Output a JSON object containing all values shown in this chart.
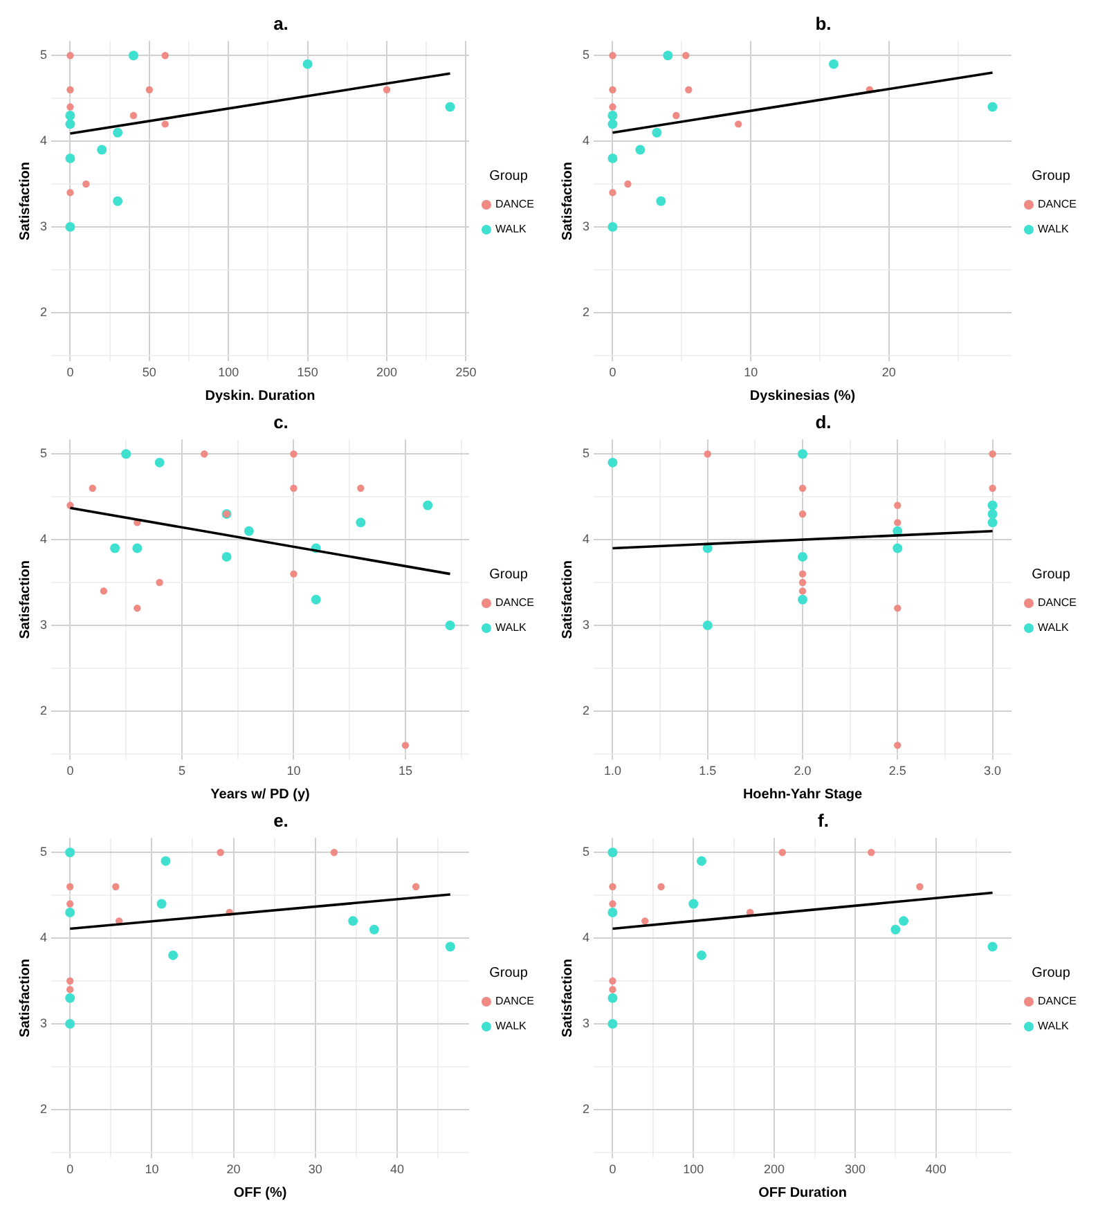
{
  "chart_data": [
    {
      "type": "scatter",
      "title": "a.",
      "xlabel": "Dyskin. Duration",
      "ylabel": "Satisfaction",
      "legend_title": "Group",
      "legend": "right",
      "grid": true,
      "marker": "circle",
      "xlim": [
        -12,
        252
      ],
      "ylim": [
        1.43,
        5.17
      ],
      "xticks": [
        0,
        {
          "value": 25,
          "label": null
        },
        50,
        {
          "value": 75,
          "label": null
        },
        100,
        {
          "value": 125,
          "label": null
        },
        150,
        {
          "value": 175,
          "label": null
        },
        200,
        {
          "value": 225,
          "label": null
        },
        250
      ],
      "yticks": [
        {
          "value": 1.5,
          "label": null
        },
        2,
        {
          "value": 2.5,
          "label": null
        },
        3,
        {
          "value": 3.5,
          "label": null
        },
        4,
        {
          "value": 4.5,
          "label": null
        },
        5
      ],
      "series": [
        {
          "name": "DANCE",
          "color": "#f08a84",
          "x": [
            0,
            0,
            0,
            0,
            10,
            40,
            50,
            60,
            60,
            200
          ],
          "values": [
            5,
            4.6,
            4.4,
            3.4,
            3.5,
            4.3,
            4.6,
            5,
            4.2,
            4.6
          ]
        },
        {
          "name": "WALK",
          "color": "#40e0d0",
          "x": [
            0,
            0,
            0,
            0,
            20,
            30,
            30,
            40,
            150,
            240
          ],
          "values": [
            4.3,
            4.2,
            3.8,
            3,
            3.9,
            4.1,
            3.3,
            5,
            4.9,
            4.4
          ]
        },
        {
          "type": "line",
          "marker": "none",
          "color": "#000000",
          "x": [
            0,
            240
          ],
          "values": [
            4.09,
            4.79
          ]
        }
      ]
    },
    {
      "type": "scatter",
      "title": "b.",
      "xlabel": "Dyskinesias (%)",
      "ylabel": "Satisfaction",
      "legend_title": "Group",
      "legend": "right",
      "grid": true,
      "marker": "circle",
      "xlim": [
        -1.375,
        28.875
      ],
      "ylim": [
        1.43,
        5.17
      ],
      "xticks": [
        0,
        {
          "value": 5,
          "label": null
        },
        10,
        {
          "value": 15,
          "label": null
        },
        20,
        {
          "value": 25,
          "label": null
        }
      ],
      "yticks": [
        {
          "value": 1.5,
          "label": null
        },
        2,
        {
          "value": 2.5,
          "label": null
        },
        3,
        {
          "value": 3.5,
          "label": null
        },
        4,
        {
          "value": 4.5,
          "label": null
        },
        5
      ],
      "series": [
        {
          "name": "DANCE",
          "color": "#f08a84",
          "x": [
            0,
            0,
            0,
            0,
            1.1,
            4.6,
            5.3,
            5.5,
            9.1,
            18.6
          ],
          "values": [
            5,
            4.6,
            4.4,
            3.4,
            3.5,
            4.3,
            5,
            4.6,
            4.2,
            4.6
          ]
        },
        {
          "name": "WALK",
          "color": "#40e0d0",
          "x": [
            0,
            0,
            0,
            0,
            2,
            3.2,
            3.5,
            4,
            16,
            27.5
          ],
          "values": [
            4.3,
            4.2,
            3.8,
            3,
            3.9,
            4.1,
            3.3,
            5,
            4.9,
            4.4
          ]
        },
        {
          "type": "line",
          "marker": "none",
          "color": "#000000",
          "x": [
            0,
            27.5
          ],
          "values": [
            4.1,
            4.8
          ]
        }
      ]
    },
    {
      "type": "scatter",
      "title": "c.",
      "xlabel": "Years w/ PD (y)",
      "ylabel": "Satisfaction",
      "legend_title": "Group",
      "legend": "right",
      "grid": true,
      "marker": "circle",
      "xlim": [
        -0.85,
        17.85
      ],
      "ylim": [
        1.43,
        5.17
      ],
      "xticks": [
        0,
        {
          "value": 2.5,
          "label": null
        },
        5,
        {
          "value": 7.5,
          "label": null
        },
        10,
        {
          "value": 12.5,
          "label": null
        },
        15,
        {
          "value": 17.5,
          "label": null
        }
      ],
      "yticks": [
        {
          "value": 1.5,
          "label": null
        },
        2,
        {
          "value": 2.5,
          "label": null
        },
        3,
        {
          "value": 3.5,
          "label": null
        },
        4,
        {
          "value": 4.5,
          "label": null
        },
        5
      ],
      "series": [
        {
          "name": "DANCE",
          "color": "#f08a84",
          "x": [
            0,
            1,
            1.5,
            3,
            3,
            4,
            6,
            7,
            10,
            10,
            10,
            13,
            15
          ],
          "values": [
            4.4,
            4.6,
            3.4,
            4.2,
            3.2,
            3.5,
            5,
            4.3,
            5,
            4.6,
            3.6,
            4.6,
            1.6
          ]
        },
        {
          "name": "WALK",
          "color": "#40e0d0",
          "x": [
            2,
            2.5,
            3,
            4,
            7,
            7,
            8,
            11,
            11,
            13,
            16,
            17
          ],
          "values": [
            3.9,
            5,
            3.9,
            4.9,
            4.3,
            3.8,
            4.1,
            3.9,
            3.3,
            4.2,
            4.4,
            3
          ]
        },
        {
          "type": "line",
          "marker": "none",
          "color": "#000000",
          "x": [
            0,
            17
          ],
          "values": [
            4.37,
            3.6
          ]
        }
      ]
    },
    {
      "type": "scatter",
      "title": "d.",
      "xlabel": "Hoehn-Yahr Stage",
      "ylabel": "Satisfaction",
      "legend_title": "Group",
      "legend": "right",
      "grid": true,
      "marker": "circle",
      "xlim": [
        0.9,
        3.1
      ],
      "ylim": [
        1.43,
        5.17
      ],
      "xticks": [
        {
          "value": 1,
          "label": "1.0"
        },
        {
          "value": 1.25,
          "label": null
        },
        1.5,
        {
          "value": 1.75,
          "label": null
        },
        {
          "value": 2,
          "label": "2.0"
        },
        {
          "value": 2.25,
          "label": null
        },
        2.5,
        {
          "value": 2.75,
          "label": null
        },
        {
          "value": 3,
          "label": "3.0"
        }
      ],
      "yticks": [
        {
          "value": 1.5,
          "label": null
        },
        2,
        {
          "value": 2.5,
          "label": null
        },
        3,
        {
          "value": 3.5,
          "label": null
        },
        4,
        {
          "value": 4.5,
          "label": null
        },
        5
      ],
      "series": [
        {
          "name": "DANCE",
          "color": "#f08a84",
          "x": [
            1.5,
            2,
            2,
            2,
            2,
            2,
            2.5,
            2.5,
            2.5,
            2.5,
            3,
            3
          ],
          "values": [
            5,
            4.6,
            4.3,
            3.6,
            3.5,
            3.4,
            4.4,
            4.2,
            3.2,
            1.6,
            5,
            4.6
          ]
        },
        {
          "name": "WALK",
          "color": "#40e0d0",
          "x": [
            1,
            1.5,
            1.5,
            2,
            2,
            2,
            2.5,
            2.5,
            3,
            3,
            3
          ],
          "values": [
            4.9,
            3.9,
            3,
            5,
            3.8,
            3.3,
            4.1,
            3.9,
            4.4,
            4.3,
            4.2
          ]
        },
        {
          "type": "line",
          "marker": "none",
          "color": "#000000",
          "x": [
            1,
            3
          ],
          "values": [
            3.9,
            4.1
          ]
        }
      ]
    },
    {
      "type": "scatter",
      "title": "e.",
      "xlabel": "OFF (%)",
      "ylabel": "Satisfaction",
      "legend_title": "Group",
      "legend": "right",
      "grid": true,
      "marker": "circle",
      "xlim": [
        -2.3,
        48.8
      ],
      "ylim": [
        1.43,
        5.17
      ],
      "xticks": [
        0,
        {
          "value": 5,
          "label": null
        },
        10,
        {
          "value": 15,
          "label": null
        },
        20,
        {
          "value": 25,
          "label": null
        },
        30,
        {
          "value": 35,
          "label": null
        },
        40,
        {
          "value": 45,
          "label": null
        }
      ],
      "yticks": [
        {
          "value": 1.5,
          "label": null
        },
        2,
        {
          "value": 2.5,
          "label": null
        },
        3,
        {
          "value": 3.5,
          "label": null
        },
        4,
        {
          "value": 4.5,
          "label": null
        },
        5
      ],
      "series": [
        {
          "name": "DANCE",
          "color": "#f08a84",
          "x": [
            0,
            0,
            0,
            0,
            5.6,
            6,
            18.4,
            19.5,
            32.3,
            42.3
          ],
          "values": [
            4.6,
            4.4,
            3.5,
            3.4,
            4.6,
            4.2,
            5,
            4.3,
            5,
            4.6
          ]
        },
        {
          "name": "WALK",
          "color": "#40e0d0",
          "x": [
            0,
            0,
            0,
            0,
            11.2,
            11.7,
            12.6,
            34.6,
            37.2,
            46.5
          ],
          "values": [
            5,
            4.3,
            3.3,
            3,
            4.4,
            4.9,
            3.8,
            4.2,
            4.1,
            3.9
          ]
        },
        {
          "type": "line",
          "marker": "none",
          "color": "#000000",
          "x": [
            0,
            46.5
          ],
          "values": [
            4.11,
            4.51
          ]
        }
      ]
    },
    {
      "type": "scatter",
      "title": "f.",
      "xlabel": "OFF Duration",
      "ylabel": "Satisfaction",
      "legend_title": "Group",
      "legend": "right",
      "grid": true,
      "marker": "circle",
      "xlim": [
        -23.5,
        493.5
      ],
      "ylim": [
        1.43,
        5.17
      ],
      "xticks": [
        0,
        {
          "value": 50,
          "label": null
        },
        100,
        {
          "value": 150,
          "label": null
        },
        200,
        {
          "value": 250,
          "label": null
        },
        300,
        {
          "value": 350,
          "label": null
        },
        400,
        {
          "value": 450,
          "label": null
        }
      ],
      "yticks": [
        {
          "value": 1.5,
          "label": null
        },
        2,
        {
          "value": 2.5,
          "label": null
        },
        3,
        {
          "value": 3.5,
          "label": null
        },
        4,
        {
          "value": 4.5,
          "label": null
        },
        5
      ],
      "series": [
        {
          "name": "DANCE",
          "color": "#f08a84",
          "x": [
            0,
            0,
            0,
            0,
            40,
            60,
            170,
            210,
            320,
            380
          ],
          "values": [
            4.6,
            4.4,
            3.5,
            3.4,
            4.2,
            4.6,
            4.3,
            5,
            5,
            4.6
          ]
        },
        {
          "name": "WALK",
          "color": "#40e0d0",
          "x": [
            0,
            0,
            0,
            0,
            100,
            110,
            110,
            350,
            360,
            470
          ],
          "values": [
            5,
            4.3,
            3.3,
            3,
            4.4,
            4.9,
            3.8,
            4.1,
            4.2,
            3.9
          ]
        },
        {
          "type": "line",
          "marker": "none",
          "color": "#000000",
          "x": [
            0,
            470
          ],
          "values": [
            4.11,
            4.53
          ]
        }
      ]
    }
  ]
}
